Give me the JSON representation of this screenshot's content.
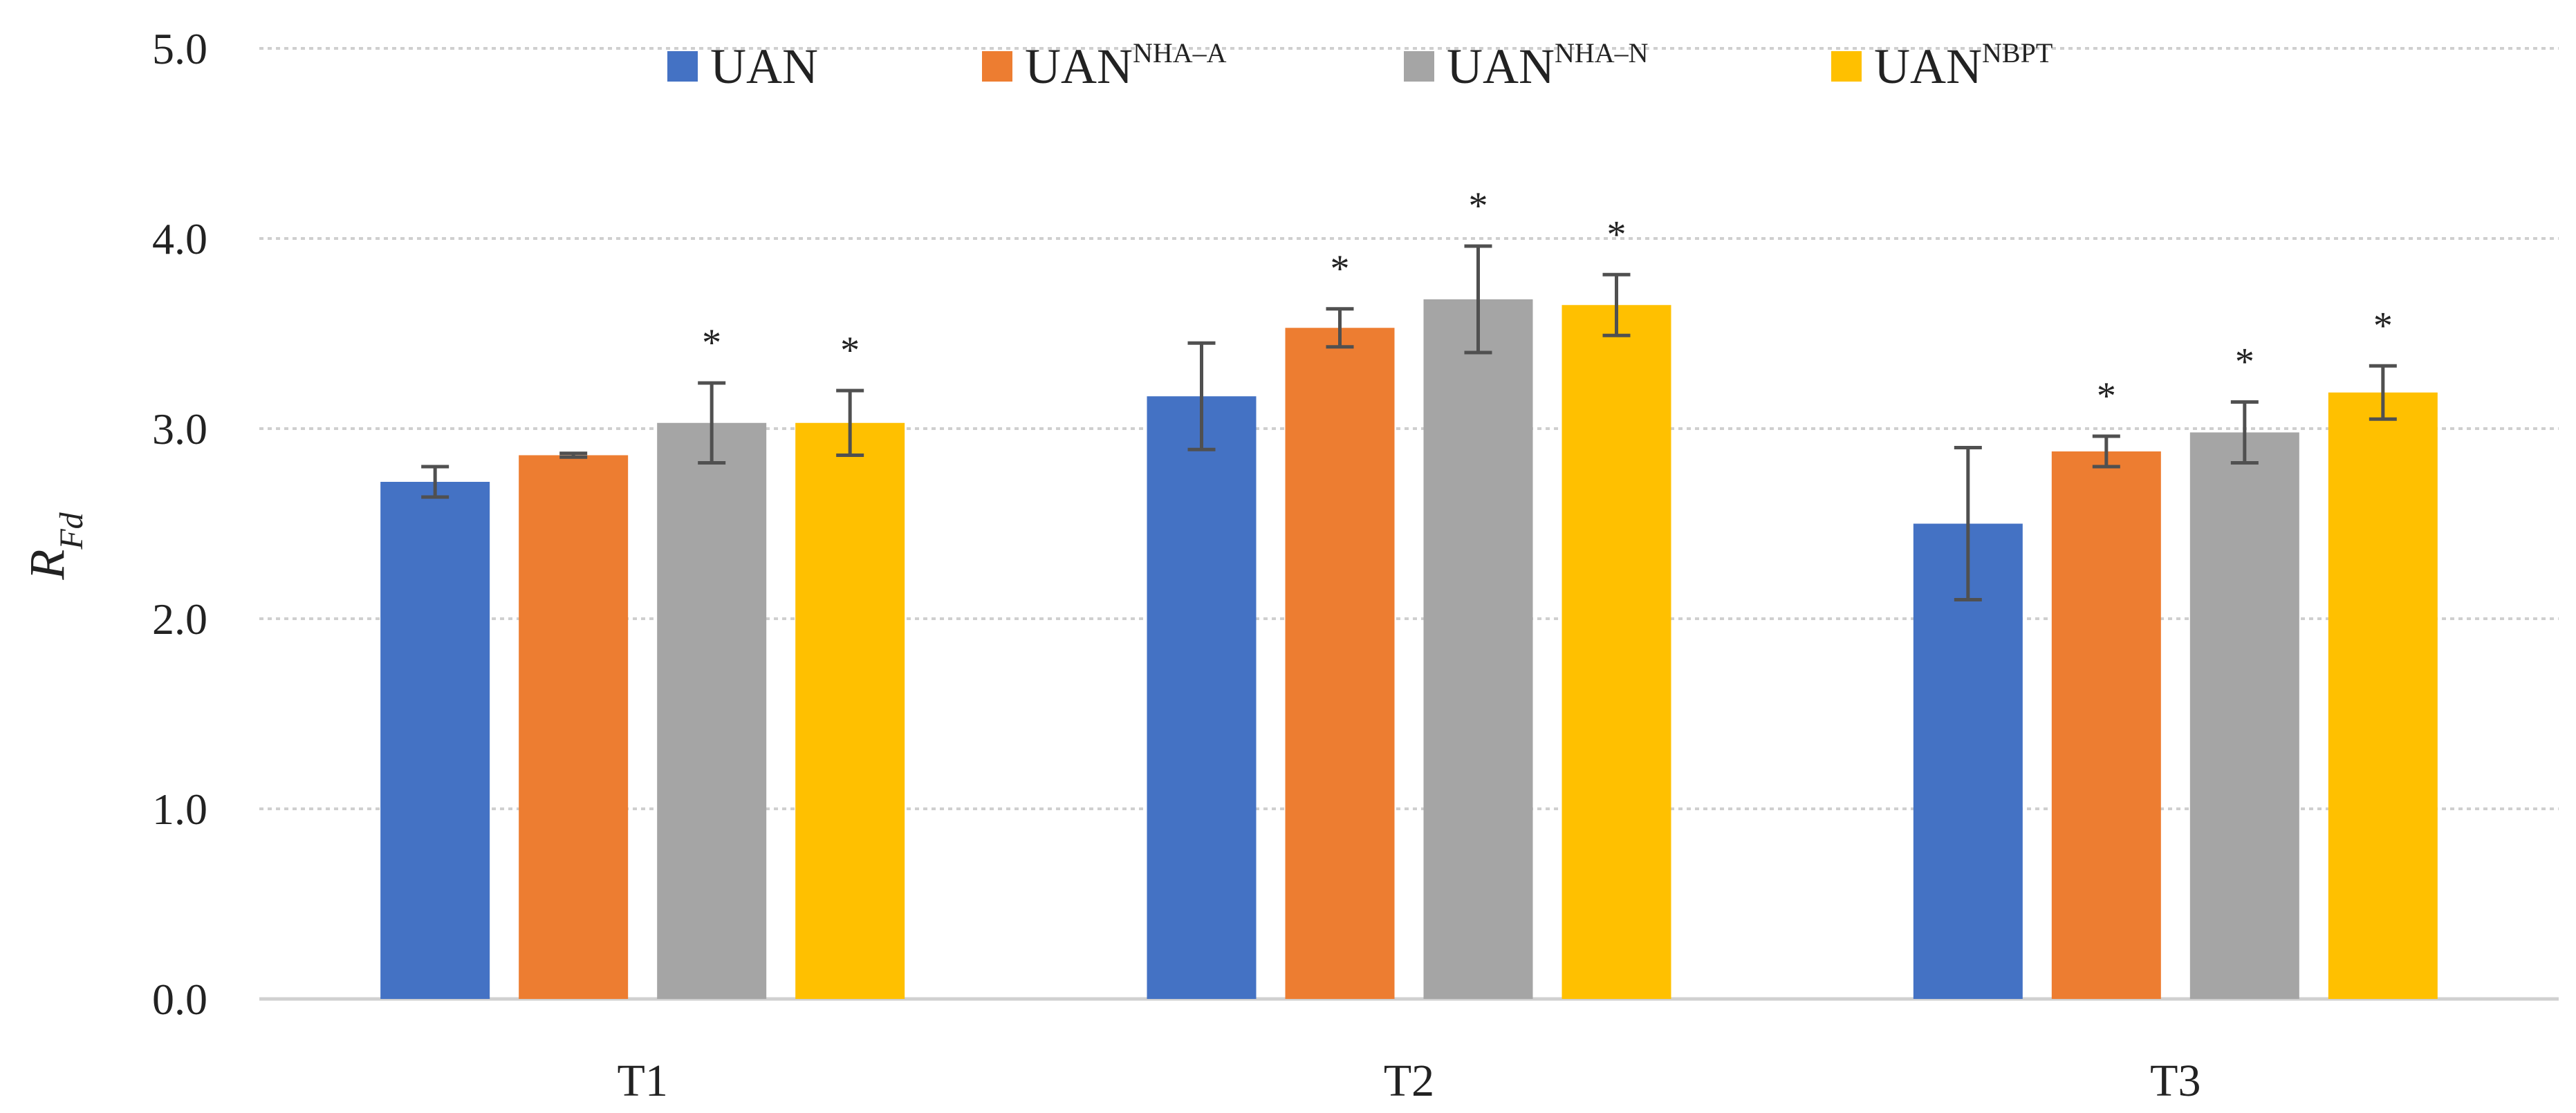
{
  "chart_data": {
    "type": "bar",
    "categories": [
      "T1",
      "T2",
      "T3"
    ],
    "ylabel": "R",
    "ylabel_sub": "Fd",
    "ylim": [
      0,
      5
    ],
    "yticks": [
      "0.0",
      "1.0",
      "2.0",
      "3.0",
      "4.0",
      "5.0"
    ],
    "ytick_values": [
      0,
      1,
      2,
      3,
      4,
      5
    ],
    "grid": "horizontal dotted",
    "legend_position": "top-center",
    "significance_marker": "*",
    "series": [
      {
        "name": "UAN",
        "name_base": "UAN",
        "name_sup": "",
        "color": "#4472C4",
        "values": [
          2.72,
          3.17,
          2.5
        ],
        "errors": [
          0.08,
          0.28,
          0.4
        ],
        "significant": [
          false,
          false,
          false
        ]
      },
      {
        "name": "UANNHA–A",
        "name_base": "UAN",
        "name_sup": "NHA–A",
        "color": "#ED7D31",
        "values": [
          2.86,
          3.53,
          2.88
        ],
        "errors": [
          0.01,
          0.1,
          0.08
        ],
        "significant": [
          false,
          true,
          true
        ]
      },
      {
        "name": "UANNHA–N",
        "name_base": "UAN",
        "name_sup": "NHA–N",
        "color": "#A5A5A5",
        "values": [
          3.03,
          3.68,
          2.98
        ],
        "errors": [
          0.21,
          0.28,
          0.16
        ],
        "significant": [
          true,
          true,
          true
        ]
      },
      {
        "name": "UANNBPT",
        "name_base": "UAN",
        "name_sup": "NBPT",
        "color": "#FFC000",
        "values": [
          3.03,
          3.65,
          3.19
        ],
        "errors": [
          0.17,
          0.16,
          0.14
        ],
        "significant": [
          true,
          true,
          true
        ]
      }
    ]
  }
}
